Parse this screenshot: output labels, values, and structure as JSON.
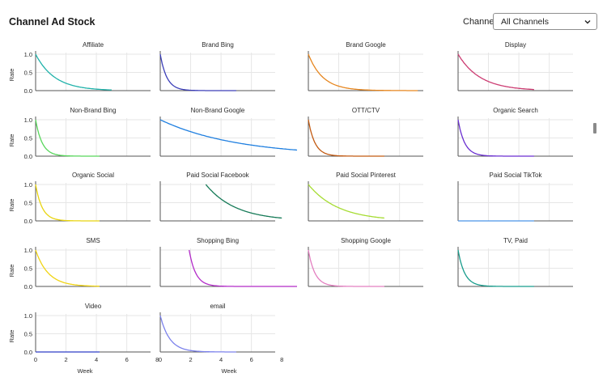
{
  "header": {
    "title": "Channel Ad Stock",
    "channel_label": "Channel",
    "channel_select_value": "All Channels"
  },
  "chart_data": {
    "type": "line",
    "title": "Channel Ad Stock",
    "xlabel": "Week",
    "ylabel": "Rate",
    "xlim": [
      0,
      9
    ],
    "ylim": [
      0,
      1
    ],
    "xticks": [
      0,
      2,
      4,
      6,
      8
    ],
    "yticks": [
      0.0,
      0.5,
      1.0
    ],
    "grid": true,
    "panels": [
      {
        "name": "Affiliate",
        "color": "#20b2aa",
        "x_start": 0,
        "x_end": 5,
        "decay": 0.45,
        "y0": 1.0
      },
      {
        "name": "Brand Bing",
        "color": "#3c3fb8",
        "x_start": 0,
        "x_end": 5,
        "decay": 0.1,
        "y0": 1.0
      },
      {
        "name": "Brand Google",
        "color": "#e6861f",
        "x_start": 0,
        "x_end": 7.2,
        "decay": 0.35,
        "y0": 1.0
      },
      {
        "name": "Display",
        "color": "#cc3c72",
        "x_start": 0,
        "x_end": 5,
        "decay": 0.5,
        "y0": 1.0
      },
      {
        "name": "Non-Brand Bing",
        "color": "#57d65b",
        "x_start": 0,
        "x_end": 4.2,
        "decay": 0.1,
        "y0": 1.0
      },
      {
        "name": "Non-Brand Google",
        "color": "#1f7fe0",
        "x_start": 0,
        "x_end": 9,
        "decay": 0.82,
        "y0": 1.0
      },
      {
        "name": "OTT/CTV",
        "color": "#c25a12",
        "x_start": 0,
        "x_end": 5,
        "decay": 0.1,
        "y0": 1.0
      },
      {
        "name": "Organic Search",
        "color": "#6a2fd0",
        "x_start": 0,
        "x_end": 5,
        "decay": 0.1,
        "y0": 1.0
      },
      {
        "name": "Organic Social",
        "color": "#e8d40f",
        "x_start": 0,
        "x_end": 4.2,
        "decay": 0.1,
        "y0": 1.0
      },
      {
        "name": "Paid Social Facebook",
        "color": "#157a57",
        "x_start": 3,
        "x_end": 8,
        "decay": 0.6,
        "y0": 1.0
      },
      {
        "name": "Paid Social Pinterest",
        "color": "#a6dc32",
        "x_start": 0,
        "x_end": 5,
        "decay": 0.6,
        "y0": 1.0
      },
      {
        "name": "Paid Social TikTok",
        "color": "#4a93e6",
        "x_start": 0,
        "x_end": 5,
        "decay": 0.0,
        "y0": 0.0
      },
      {
        "name": "SMS",
        "color": "#f0d414",
        "x_start": 0,
        "x_end": 4.2,
        "decay": 0.3,
        "y0": 1.0
      },
      {
        "name": "Shopping Bing",
        "color": "#b22ac8",
        "x_start": 1.9,
        "x_end": 9,
        "decay": 0.1,
        "y0": 1.0
      },
      {
        "name": "Shopping Google",
        "color": "#e37fc0",
        "x_start": 0,
        "x_end": 5,
        "decay": 0.1,
        "y0": 1.0
      },
      {
        "name": "TV, Paid",
        "color": "#189c8c",
        "x_start": 0,
        "x_end": 5,
        "decay": 0.1,
        "y0": 1.0
      },
      {
        "name": "Video",
        "color": "#2f3dc8",
        "x_start": 0,
        "x_end": 4.2,
        "decay": 0.0,
        "y0": 0.0
      },
      {
        "name": "email",
        "color": "#7c82ec",
        "x_start": 0,
        "x_end": 5,
        "decay": 0.2,
        "y0": 1.0
      }
    ]
  }
}
